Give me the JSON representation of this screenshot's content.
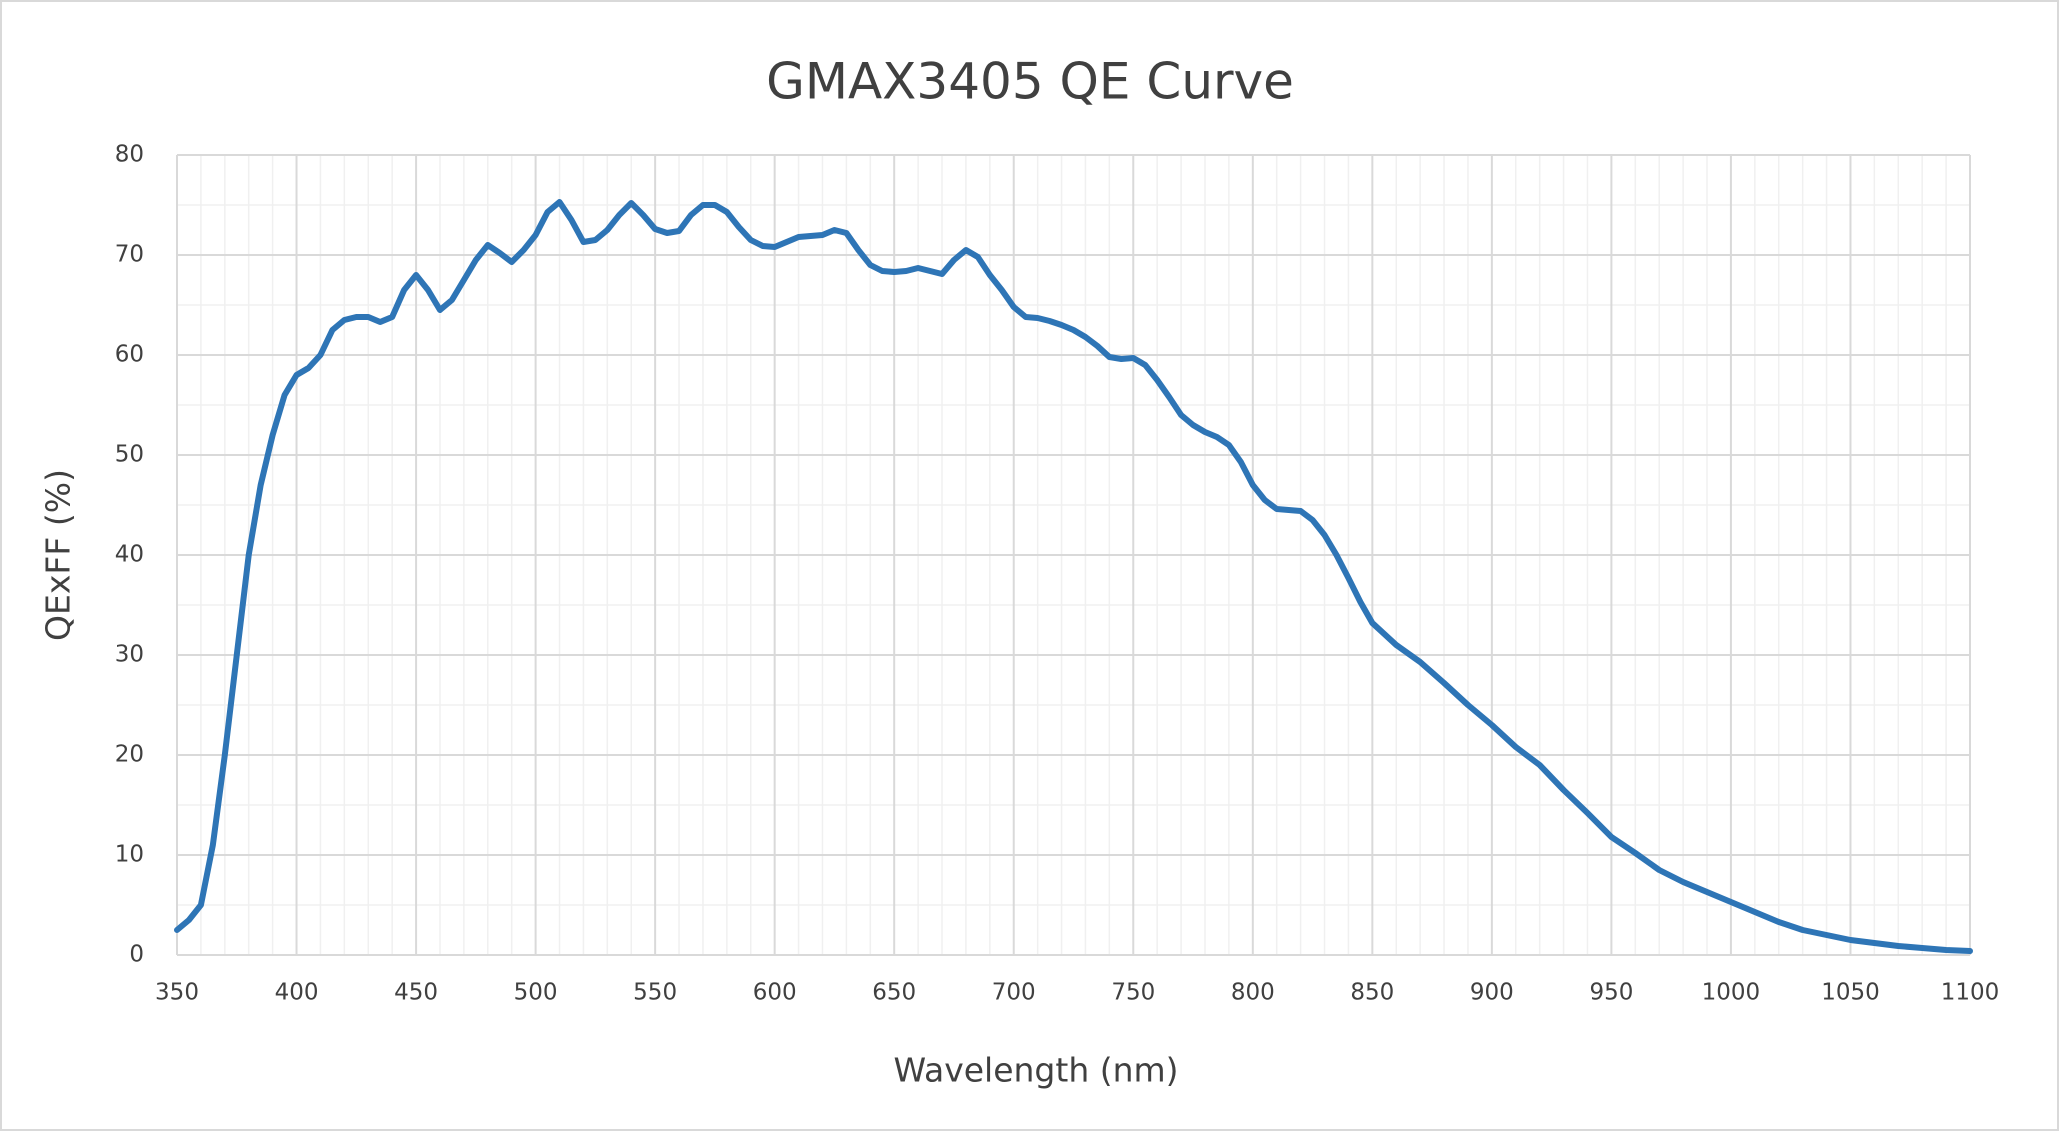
{
  "chart_data": {
    "type": "line",
    "title": "GMAX3405 QE  Curve",
    "x_label": "Wavelength (nm)",
    "y_label": "QExFF (%)",
    "x": [
      350,
      355,
      360,
      365,
      370,
      375,
      380,
      385,
      390,
      395,
      400,
      405,
      410,
      415,
      420,
      425,
      430,
      435,
      440,
      445,
      450,
      455,
      460,
      465,
      470,
      475,
      480,
      485,
      490,
      495,
      500,
      505,
      510,
      515,
      520,
      525,
      530,
      535,
      540,
      545,
      550,
      555,
      560,
      565,
      570,
      575,
      580,
      585,
      590,
      595,
      600,
      605,
      610,
      615,
      620,
      625,
      630,
      635,
      640,
      645,
      650,
      655,
      660,
      665,
      670,
      675,
      680,
      685,
      690,
      695,
      700,
      705,
      710,
      715,
      720,
      725,
      730,
      735,
      740,
      745,
      750,
      755,
      760,
      765,
      770,
      775,
      780,
      785,
      790,
      795,
      800,
      805,
      810,
      815,
      820,
      825,
      830,
      835,
      840,
      845,
      850,
      860,
      870,
      880,
      890,
      900,
      910,
      920,
      930,
      940,
      950,
      960,
      970,
      980,
      990,
      1000,
      1010,
      1020,
      1030,
      1040,
      1050,
      1060,
      1070,
      1080,
      1090,
      1100
    ],
    "series": [
      {
        "name": "QExFF",
        "color": "#2e75b6",
        "values": [
          2.5,
          3.5,
          5,
          11,
          20,
          30,
          40,
          47,
          52,
          56,
          58,
          58.7,
          60,
          62.5,
          63.5,
          63.8,
          63.8,
          63.3,
          63.8,
          66.5,
          68,
          66.5,
          64.5,
          65.5,
          67.5,
          69.5,
          71,
          70.2,
          69.3,
          70.5,
          72,
          74.3,
          75.3,
          73.5,
          71.3,
          71.5,
          72.5,
          74,
          75.2,
          74,
          72.6,
          72.2,
          72.4,
          74,
          75,
          75,
          74.3,
          72.8,
          71.5,
          70.9,
          70.8,
          71.3,
          71.8,
          71.9,
          72,
          72.5,
          72.2,
          70.5,
          69,
          68.4,
          68.3,
          68.4,
          68.7,
          68.4,
          68.1,
          69.5,
          70.5,
          69.8,
          68,
          66.5,
          64.8,
          63.8,
          63.7,
          63.4,
          63,
          62.5,
          61.8,
          60.9,
          59.8,
          59.6,
          59.7,
          59,
          57.5,
          55.8,
          54,
          53,
          52.3,
          51.8,
          51,
          49.3,
          47,
          45.5,
          44.6,
          44.5,
          44.4,
          43.5,
          42,
          40,
          37.7,
          35.3,
          33.2,
          31,
          29.3,
          27.2,
          25,
          23,
          20.8,
          19,
          16.5,
          14.2,
          11.8,
          10.2,
          8.5,
          7.3,
          6.3,
          5.3,
          4.3,
          3.3,
          2.5,
          2,
          1.5,
          1.2,
          0.9,
          0.7,
          0.5,
          0.4
        ]
      }
    ],
    "xlim": [
      350,
      1100
    ],
    "xticks": [
      350,
      400,
      450,
      500,
      550,
      600,
      650,
      700,
      750,
      800,
      850,
      900,
      950,
      1000,
      1050,
      1100
    ],
    "ylim": [
      0,
      80
    ],
    "yticks": [
      0,
      10,
      20,
      30,
      40,
      50,
      60,
      70,
      80
    ],
    "grid": true,
    "minor_grid": true
  }
}
